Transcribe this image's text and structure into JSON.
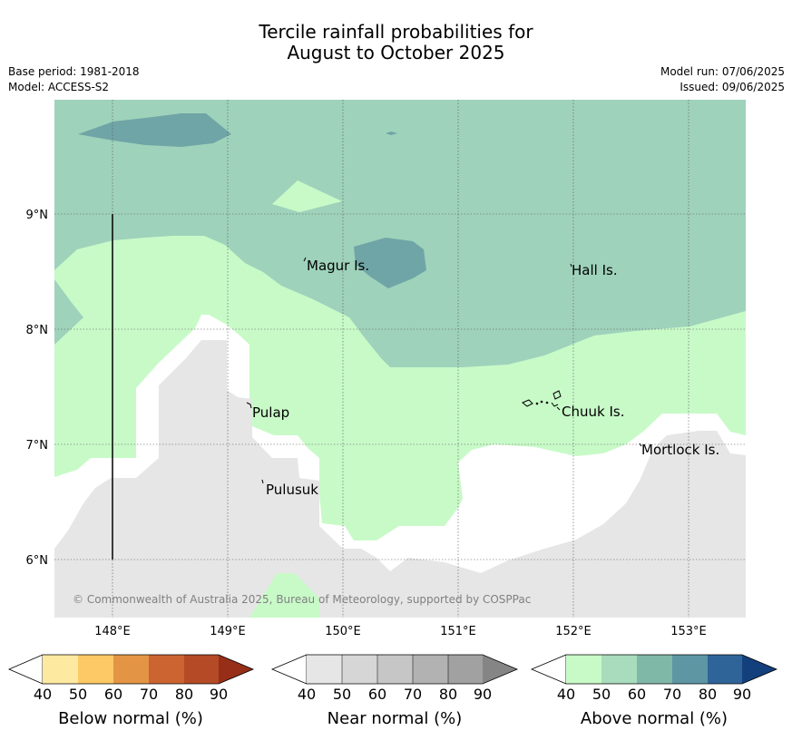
{
  "title": {
    "line1": "Tercile rainfall probabilities for",
    "line2": "August to October 2025"
  },
  "meta": {
    "base_period": "Base period: 1981-2018",
    "model": "Model: ACCESS-S2",
    "model_run": "Model run: 07/06/2025",
    "issued": "Issued: 09/06/2025"
  },
  "map": {
    "lon_labels": [
      "148°E",
      "149°E",
      "150°E",
      "151°E",
      "152°E",
      "153°E"
    ],
    "lat_labels": [
      "9°N",
      "8°N",
      "7°N",
      "6°N"
    ],
    "places": [
      "Magur Is.",
      "Hall Is.",
      "Pulap",
      "Chuuk Is.",
      "Mortlock Is.",
      "Pulusuk"
    ],
    "copyright": "© Commonwealth of Australia 2025, Bureau of Meteorology, supported by COSPPac"
  },
  "legend": {
    "ticks": [
      "40",
      "50",
      "60",
      "70",
      "80",
      "90"
    ],
    "below": {
      "label": "Below normal (%)",
      "colors": [
        "#ffffff",
        "#fde9a0",
        "#fdc966",
        "#e39545",
        "#cc6432",
        "#b44a26",
        "#962e18"
      ]
    },
    "near": {
      "label": "Near normal (%)",
      "colors": [
        "#ffffff",
        "#e6e6e6",
        "#d6d6d6",
        "#c6c6c6",
        "#b2b2b2",
        "#a1a1a1",
        "#858585"
      ]
    },
    "above": {
      "label": "Above normal (%)",
      "colors": [
        "#ffffff",
        "#c8fac8",
        "#a8dcbc",
        "#80b8a8",
        "#5e96a4",
        "#2f6499",
        "#143f7d"
      ]
    }
  },
  "colors": {
    "above_40_50": "#c8fac8",
    "above_50_60": "#9fd2bb",
    "above_60_70": "#6fa5a6",
    "near_40_50": "#e6e6e6",
    "white": "#ffffff"
  }
}
